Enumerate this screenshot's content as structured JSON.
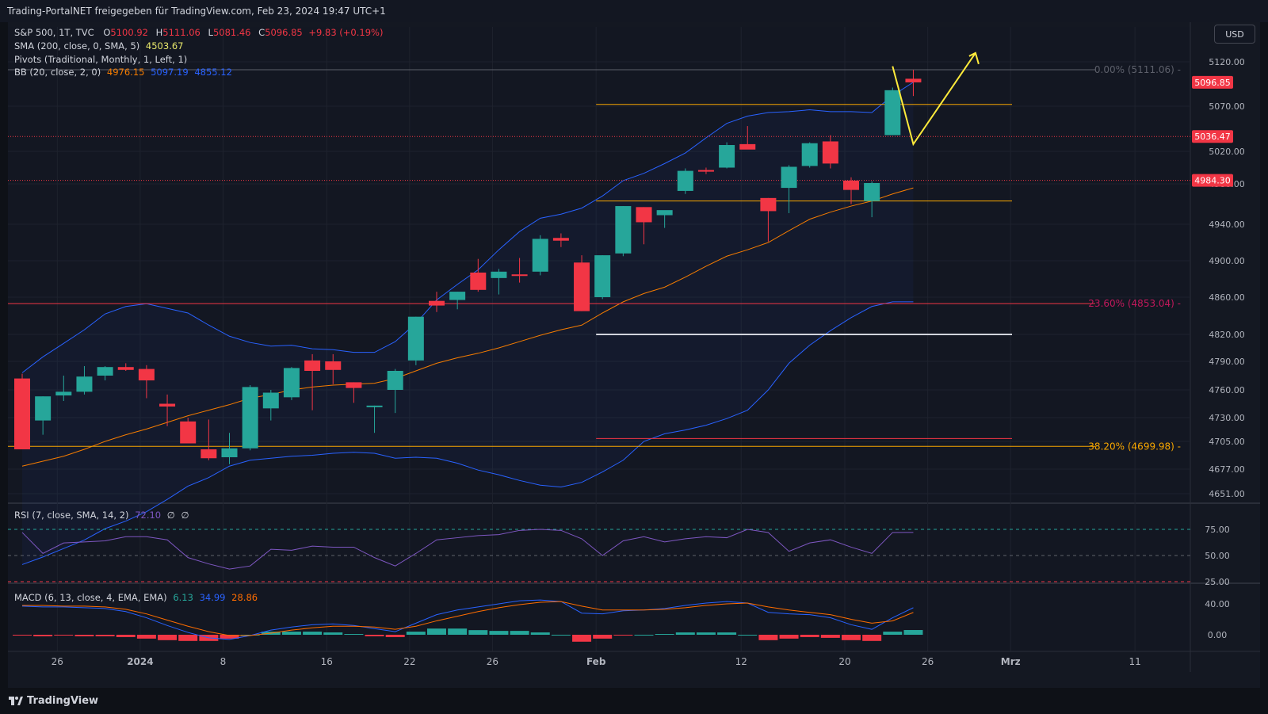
{
  "header": {
    "title": "Trading-PortalNET freigegeben für TradingView.com, Feb 23, 2024 19:47 UTC+1"
  },
  "footer": {
    "brand": "TradingView"
  },
  "currency_button": "USD",
  "colors": {
    "up": "#26a69a",
    "down": "#f23645",
    "bb_band": "#2962ff",
    "bb_basis": "#f57c00",
    "rsi": "#7e57c2",
    "macd": "#2962ff",
    "signal": "#ff6d00",
    "fib": "#9b1c31",
    "projection": "#ffeb3b"
  },
  "legend": {
    "symbol": "S&P 500, 1T, TVC",
    "o_label": "O",
    "o": "5100.92",
    "h_label": "H",
    "h": "5111.06",
    "l_label": "L",
    "l": "5081.46",
    "c_label": "C",
    "c": "5096.85",
    "change": "+9.83 (+0.19%)",
    "sma_label": "SMA (200, close, 0, SMA, 5)",
    "sma_value": "4503.67",
    "pivots_label": "Pivots (Traditional, Monthly, 1, Left, 1)",
    "bb_label": "BB (20, close, 2, 0)",
    "bb_basis": "4976.15",
    "bb_upper": "5097.19",
    "bb_lower": "4855.12",
    "rsi_label": "RSI (7, close, SMA, 14, 2)",
    "rsi_value": "72.10",
    "rsi_na1": "∅",
    "rsi_na2": "∅",
    "macd_label": "MACD (6, 13, close, 4, EMA, EMA)",
    "macd_hist": "6.13",
    "macd_value": "34.99",
    "macd_signal": "28.86"
  },
  "chart_data": {
    "type": "candlestick",
    "title": "S&P 500, 1T, TVC",
    "price_axis_ticks": [
      5120.0,
      5070.0,
      5020.0,
      4980.0,
      4940.0,
      4900.0,
      4860.0,
      4820.0,
      4790.0,
      4760.0,
      4730.0,
      4705.0,
      4677.0,
      4651.0
    ],
    "price_axis_labels": [
      "5120.00",
      "5070.00",
      "5020.00",
      "4980.00",
      "4940.00",
      "4900.00",
      "4860.00",
      "4820.00",
      "4790.00",
      "4760.00",
      "4730.00",
      "4705.00",
      "4677.00",
      "4651.00"
    ],
    "price_badges": [
      {
        "value": 5096.85,
        "label": "5096.85"
      },
      {
        "value": 5036.47,
        "label": "5036.47"
      },
      {
        "value": 4984.3,
        "label": "4984.30"
      }
    ],
    "fib_levels": [
      {
        "label": "0.00% (5111.06)",
        "value": 5111.06
      },
      {
        "label": "23.60% (4853.04)",
        "value": 4853.04
      },
      {
        "label": "38.20% (4699.98)",
        "value": 4699.98
      }
    ],
    "x_tick_labels": [
      "26",
      "2024",
      "8",
      "16",
      "22",
      "26",
      "Feb",
      "12",
      "20",
      "26",
      "Mrz",
      "11"
    ],
    "x_tick_index": [
      2,
      6,
      10,
      15,
      19,
      23,
      28,
      35,
      40,
      44,
      48,
      54
    ],
    "candles": [
      {
        "o": 4772,
        "h": 4777,
        "l": 4697,
        "c": 4697
      },
      {
        "o": 4727,
        "h": 4753,
        "l": 4712,
        "c": 4753
      },
      {
        "o": 4754,
        "h": 4775,
        "l": 4748,
        "c": 4758
      },
      {
        "o": 4758,
        "h": 4785,
        "l": 4755,
        "c": 4774
      },
      {
        "o": 4775,
        "h": 4785,
        "l": 4770,
        "c": 4784
      },
      {
        "o": 4784,
        "h": 4788,
        "l": 4780,
        "c": 4781
      },
      {
        "o": 4782,
        "h": 4786,
        "l": 4751,
        "c": 4770
      },
      {
        "o": 4745,
        "h": 4755,
        "l": 4721,
        "c": 4742
      },
      {
        "o": 4726,
        "h": 4730,
        "l": 4705,
        "c": 4703
      },
      {
        "o": 4697,
        "h": 4728,
        "l": 4686,
        "c": 4688
      },
      {
        "o": 4689,
        "h": 4714,
        "l": 4682,
        "c": 4698
      },
      {
        "o": 4698,
        "h": 4765,
        "l": 4696,
        "c": 4763
      },
      {
        "o": 4740,
        "h": 4760,
        "l": 4727,
        "c": 4757
      },
      {
        "o": 4752,
        "h": 4784,
        "l": 4749,
        "c": 4783
      },
      {
        "o": 4791,
        "h": 4798,
        "l": 4738,
        "c": 4780
      },
      {
        "o": 4790,
        "h": 4798,
        "l": 4766,
        "c": 4781
      },
      {
        "o": 4768,
        "h": 4768,
        "l": 4746,
        "c": 4762
      },
      {
        "o": 4743,
        "h": 4743,
        "l": 4714,
        "c": 4743
      },
      {
        "o": 4760,
        "h": 4782,
        "l": 4735,
        "c": 4780
      },
      {
        "o": 4791,
        "h": 4839,
        "l": 4786,
        "c": 4839
      },
      {
        "o": 4856,
        "h": 4866,
        "l": 4844,
        "c": 4851
      },
      {
        "o": 4857,
        "h": 4866,
        "l": 4847,
        "c": 4866
      },
      {
        "o": 4887,
        "h": 4902,
        "l": 4866,
        "c": 4868
      },
      {
        "o": 4881,
        "h": 4891,
        "l": 4863,
        "c": 4888
      },
      {
        "o": 4885,
        "h": 4903,
        "l": 4876,
        "c": 4884
      },
      {
        "o": 4888,
        "h": 4928,
        "l": 4884,
        "c": 4924
      },
      {
        "o": 4925,
        "h": 4930,
        "l": 4915,
        "c": 4922
      },
      {
        "o": 4898,
        "h": 4906,
        "l": 4845,
        "c": 4845
      },
      {
        "o": 4860,
        "h": 4906,
        "l": 4858,
        "c": 4906
      },
      {
        "o": 4908,
        "h": 4958,
        "l": 4905,
        "c": 4958
      },
      {
        "o": 4957,
        "h": 4957,
        "l": 4918,
        "c": 4942
      },
      {
        "o": 4949,
        "h": 4953,
        "l": 4936,
        "c": 4954
      },
      {
        "o": 4973,
        "h": 4999,
        "l": 4970,
        "c": 4996
      },
      {
        "o": 4997,
        "h": 5000,
        "l": 4992,
        "c": 4995
      },
      {
        "o": 5000,
        "h": 5030,
        "l": 4999,
        "c": 5027
      },
      {
        "o": 5028,
        "h": 5048,
        "l": 5023,
        "c": 5022
      },
      {
        "o": 4966,
        "h": 4966,
        "l": 4921,
        "c": 4953
      },
      {
        "o": 4976,
        "h": 5003,
        "l": 4951,
        "c": 5001
      },
      {
        "o": 5002,
        "h": 5030,
        "l": 5000,
        "c": 5029
      },
      {
        "o": 5031,
        "h": 5038,
        "l": 4999,
        "c": 5005
      },
      {
        "o": 4984,
        "h": 4988,
        "l": 4960,
        "c": 4974
      },
      {
        "o": 4963,
        "h": 4983,
        "l": 4947,
        "c": 4981
      },
      {
        "o": 5038,
        "h": 5091,
        "l": 5038,
        "c": 5088
      },
      {
        "o": 5100.92,
        "h": 5111.06,
        "l": 5081.46,
        "c": 5096.85
      }
    ],
    "bb_upper": [
      4778,
      4795,
      4810,
      4825,
      4842,
      4850,
      4853,
      4848,
      4843,
      4830,
      4818,
      4811,
      4807,
      4808,
      4804,
      4803,
      4800,
      4800,
      4812,
      4832,
      4857,
      4874,
      4890,
      4912,
      4932,
      4946,
      4950,
      4956,
      4968,
      4984,
      4993,
      5005,
      5018,
      5035,
      5051,
      5059,
      5063,
      5064,
      5066,
      5064,
      5064,
      5063,
      5082,
      5097
    ],
    "bb_basis": [
      4680,
      4685,
      4690,
      4697,
      4705,
      4712,
      4718,
      4725,
      4732,
      4738,
      4744,
      4751,
      4755,
      4760,
      4763,
      4765,
      4766,
      4767,
      4772,
      4780,
      4788,
      4794,
      4799,
      4805,
      4812,
      4819,
      4825,
      4830,
      4843,
      4855,
      4864,
      4871,
      4882,
      4894,
      4905,
      4912,
      4920,
      4933,
      4945,
      4952,
      4958,
      4963,
      4970,
      4976
    ],
    "bb_lower": [
      4576,
      4584,
      4593,
      4602,
      4614,
      4622,
      4632,
      4645,
      4659,
      4668,
      4680,
      4686,
      4688,
      4690,
      4691,
      4693,
      4694,
      4693,
      4688,
      4689,
      4688,
      4683,
      4676,
      4671,
      4665,
      4660,
      4658,
      4663,
      4674,
      4686,
      4705,
      4713,
      4717,
      4722,
      4729,
      4738,
      4760,
      4788,
      4808,
      4824,
      4838,
      4850,
      4855,
      4855
    ],
    "horizontal_lines": [
      {
        "value": 5072,
        "color": "#f7a600"
      },
      {
        "value": 4963,
        "color": "#f7a600"
      },
      {
        "value": 4820,
        "color": "#d1d4dc"
      },
      {
        "value": 4708,
        "color": "#f23645"
      }
    ],
    "projection_path": [
      [
        42,
        5115
      ],
      [
        43,
        5028
      ],
      [
        46,
        5130
      ]
    ],
    "rsi": {
      "levels": [
        75.0,
        50.0,
        25.0
      ],
      "level_labels": [
        "75.00",
        "50.00",
        "25.00"
      ],
      "values": [
        72,
        52,
        62,
        63,
        64,
        68,
        68,
        65,
        48,
        42,
        37,
        40,
        56,
        55,
        59,
        58,
        58,
        48,
        40,
        52,
        65,
        67,
        69,
        70,
        74,
        75,
        74,
        66,
        50,
        64,
        68,
        63,
        66,
        68,
        67,
        75,
        72,
        54,
        62,
        65,
        58,
        52,
        72,
        72.1
      ]
    },
    "macd": {
      "levels": [
        40.0,
        0.0
      ],
      "level_labels": [
        "40.00",
        "0.00"
      ],
      "macd": [
        37,
        36,
        36,
        35,
        34,
        30,
        22,
        12,
        3,
        -4,
        -6,
        -1,
        6,
        10,
        13,
        14,
        12,
        8,
        4,
        15,
        26,
        32,
        36,
        40,
        44,
        45,
        43,
        28,
        27,
        31,
        32,
        34,
        38,
        41,
        43,
        41,
        29,
        27,
        26,
        22,
        13,
        7,
        22,
        34.99
      ],
      "signal": [
        38,
        38,
        37,
        37,
        36,
        33,
        27,
        19,
        11,
        4,
        -1,
        -1,
        2,
        6,
        9,
        11,
        11,
        10,
        7,
        11,
        18,
        24,
        30,
        35,
        39,
        42,
        43,
        37,
        32,
        32,
        32,
        33,
        35,
        38,
        40,
        41,
        36,
        32,
        29,
        26,
        20,
        15,
        18,
        28.86
      ],
      "histogram": [
        -1,
        -2,
        -1,
        -2,
        -2,
        -3,
        -5,
        -7,
        -8,
        -8,
        -5,
        0,
        4,
        4,
        4,
        3,
        1,
        -2,
        -3,
        4,
        8,
        8,
        6,
        5,
        5,
        3,
        0,
        -9,
        -5,
        -1,
        0,
        1,
        3,
        3,
        3,
        0,
        -7,
        -5,
        -3,
        -4,
        -7,
        -8,
        4,
        6.13
      ]
    }
  }
}
